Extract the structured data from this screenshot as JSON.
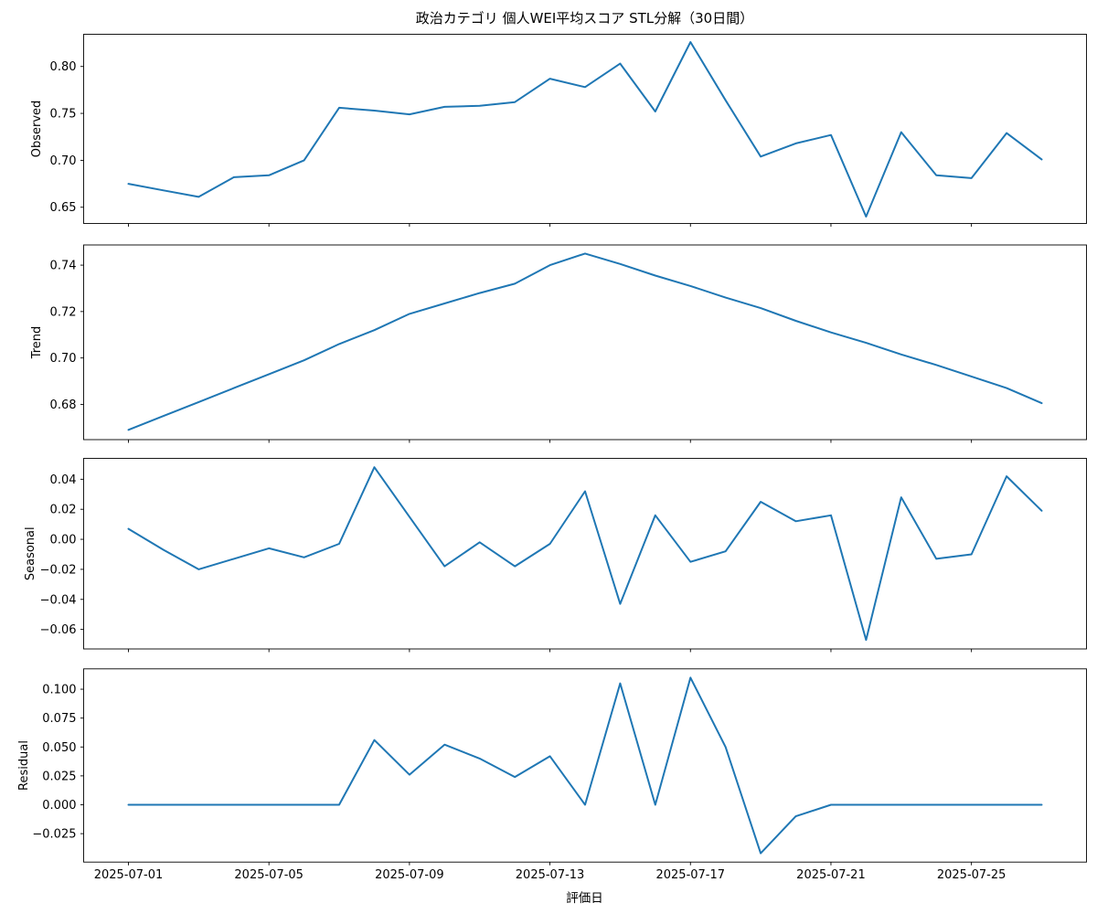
{
  "chart_data": {
    "type": "line",
    "title": "政治カテゴリ 個人WEI平均スコア STL分解（30日間）",
    "xlabel": "評価日",
    "line_color": "#1f77b4",
    "grid": false,
    "legend": null,
    "x_dates": [
      "2025-07-01",
      "2025-07-02",
      "2025-07-03",
      "2025-07-04",
      "2025-07-05",
      "2025-07-06",
      "2025-07-07",
      "2025-07-08",
      "2025-07-09",
      "2025-07-10",
      "2025-07-11",
      "2025-07-12",
      "2025-07-13",
      "2025-07-14",
      "2025-07-15",
      "2025-07-16",
      "2025-07-17",
      "2025-07-18",
      "2025-07-19",
      "2025-07-20",
      "2025-07-21",
      "2025-07-22",
      "2025-07-23",
      "2025-07-24",
      "2025-07-25",
      "2025-07-26",
      "2025-07-27"
    ],
    "x_tick_indices": [
      0,
      4,
      8,
      12,
      16,
      20,
      24
    ],
    "x_tick_labels": [
      "2025-07-01",
      "2025-07-05",
      "2025-07-09",
      "2025-07-13",
      "2025-07-17",
      "2025-07-21",
      "2025-07-25"
    ],
    "panels": [
      {
        "ylabel": "Observed",
        "ylim": [
          0.6327,
          0.8343
        ],
        "yticks": [
          {
            "v": 0.65,
            "label": "0.65"
          },
          {
            "v": 0.7,
            "label": "0.70"
          },
          {
            "v": 0.75,
            "label": "0.75"
          },
          {
            "v": 0.8,
            "label": "0.80"
          }
        ],
        "values": [
          0.675,
          0.668,
          0.661,
          0.682,
          0.684,
          0.7,
          0.756,
          0.753,
          0.749,
          0.757,
          0.758,
          0.762,
          0.787,
          0.778,
          0.803,
          0.752,
          0.826,
          0.764,
          0.704,
          0.718,
          0.727,
          0.64,
          0.73,
          0.684,
          0.681,
          0.729,
          0.701
        ]
      },
      {
        "ylabel": "Trend",
        "ylim": [
          0.6648,
          0.7487
        ],
        "yticks": [
          {
            "v": 0.68,
            "label": "0.68"
          },
          {
            "v": 0.7,
            "label": "0.70"
          },
          {
            "v": 0.72,
            "label": "0.72"
          },
          {
            "v": 0.74,
            "label": "0.74"
          }
        ],
        "values": [
          0.669,
          0.675,
          0.681,
          0.687,
          0.693,
          0.699,
          0.706,
          0.712,
          0.719,
          0.7235,
          0.728,
          0.732,
          0.74,
          0.745,
          0.7405,
          0.7355,
          0.731,
          0.726,
          0.7215,
          0.716,
          0.711,
          0.7065,
          0.7015,
          0.697,
          0.692,
          0.687,
          0.6805
        ]
      },
      {
        "ylabel": "Seasonal",
        "ylim": [
          -0.073,
          0.0539
        ],
        "yticks": [
          {
            "v": -0.06,
            "label": "−0.06"
          },
          {
            "v": -0.04,
            "label": "−0.04"
          },
          {
            "v": -0.02,
            "label": "−0.02"
          },
          {
            "v": 0.0,
            "label": "0.00"
          },
          {
            "v": 0.02,
            "label": "0.02"
          },
          {
            "v": 0.04,
            "label": "0.04"
          }
        ],
        "values": [
          0.007,
          -0.007,
          -0.02,
          -0.013,
          -0.006,
          -0.012,
          -0.003,
          0.048,
          0.015,
          -0.018,
          -0.002,
          -0.018,
          -0.003,
          0.032,
          -0.043,
          0.016,
          -0.015,
          -0.008,
          0.025,
          0.012,
          0.016,
          -0.067,
          0.028,
          -0.013,
          -0.01,
          0.042,
          0.019
        ]
      },
      {
        "ylabel": "Residual",
        "ylim": [
          -0.0496,
          0.1176
        ],
        "yticks": [
          {
            "v": -0.025,
            "label": "−0.025"
          },
          {
            "v": 0.0,
            "label": "0.000"
          },
          {
            "v": 0.025,
            "label": "0.025"
          },
          {
            "v": 0.05,
            "label": "0.050"
          },
          {
            "v": 0.075,
            "label": "0.075"
          },
          {
            "v": 0.1,
            "label": "0.100"
          }
        ],
        "values": [
          0.0,
          0.0,
          0.0,
          0.0,
          0.0,
          0.0,
          0.0,
          0.056,
          0.026,
          0.052,
          0.04,
          0.024,
          0.042,
          0.0,
          0.105,
          0.0,
          0.11,
          0.05,
          -0.042,
          -0.01,
          0.0,
          0.0,
          0.0,
          0.0,
          0.0,
          0.0,
          0.0
        ]
      }
    ]
  }
}
